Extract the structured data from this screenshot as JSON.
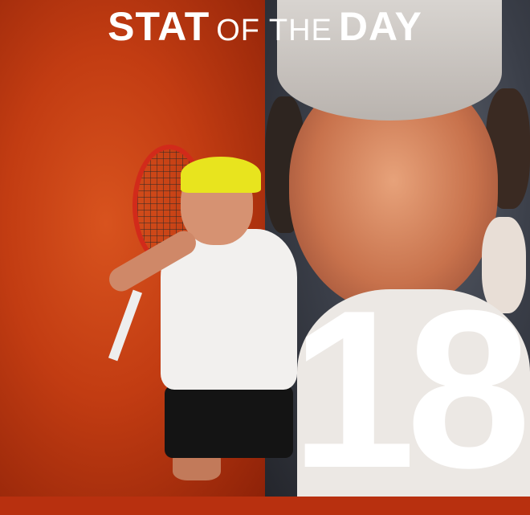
{
  "header": {
    "title_part1": "STAT",
    "title_part2": "OF THE",
    "title_part3": "DAY"
  },
  "stat": {
    "value": "18"
  },
  "colors": {
    "left_background": "#c23c12",
    "right_background": "#3a3e48",
    "text": "#ffffff"
  }
}
